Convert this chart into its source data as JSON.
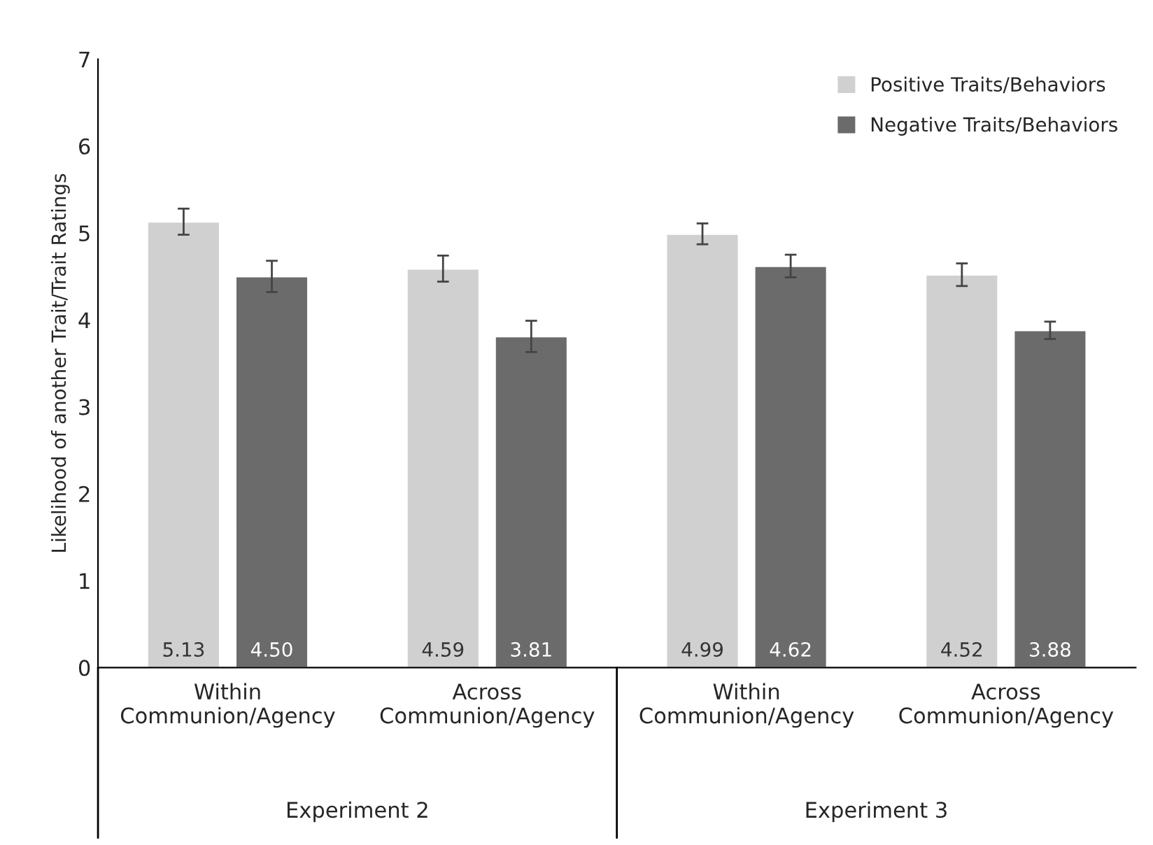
{
  "chart_data": {
    "type": "bar",
    "ylabel": "Likelihood of another Trait/Trait Ratings",
    "categories": [
      "Within\nCommunion/Agency",
      "Across\nCommunion/Agency",
      "Within\nCommunion/Agency",
      "Across\nCommunion/Agency"
    ],
    "series": [
      {
        "name": "Positive Traits/Behaviors",
        "color": "#d0d0d0",
        "values": [
          5.13,
          4.59,
          4.99,
          4.52
        ],
        "value_labels": [
          "5.13",
          "4.59",
          "4.99",
          "4.52"
        ],
        "errors": [
          0.15,
          0.15,
          0.12,
          0.13
        ]
      },
      {
        "name": "Negative Traits/Behaviors",
        "color": "#6b6b6b",
        "values": [
          4.5,
          3.81,
          4.62,
          3.88
        ],
        "value_labels": [
          "4.50",
          "3.81",
          "4.62",
          "3.88"
        ],
        "errors": [
          0.18,
          0.18,
          0.13,
          0.1
        ]
      }
    ],
    "annotations": [
      "Experiment 2",
      "Experiment 3"
    ],
    "ylim": [
      0,
      7
    ],
    "yticks": [
      0,
      1,
      2,
      3,
      4,
      5,
      6,
      7
    ],
    "legend": "top right",
    "grid": false
  }
}
